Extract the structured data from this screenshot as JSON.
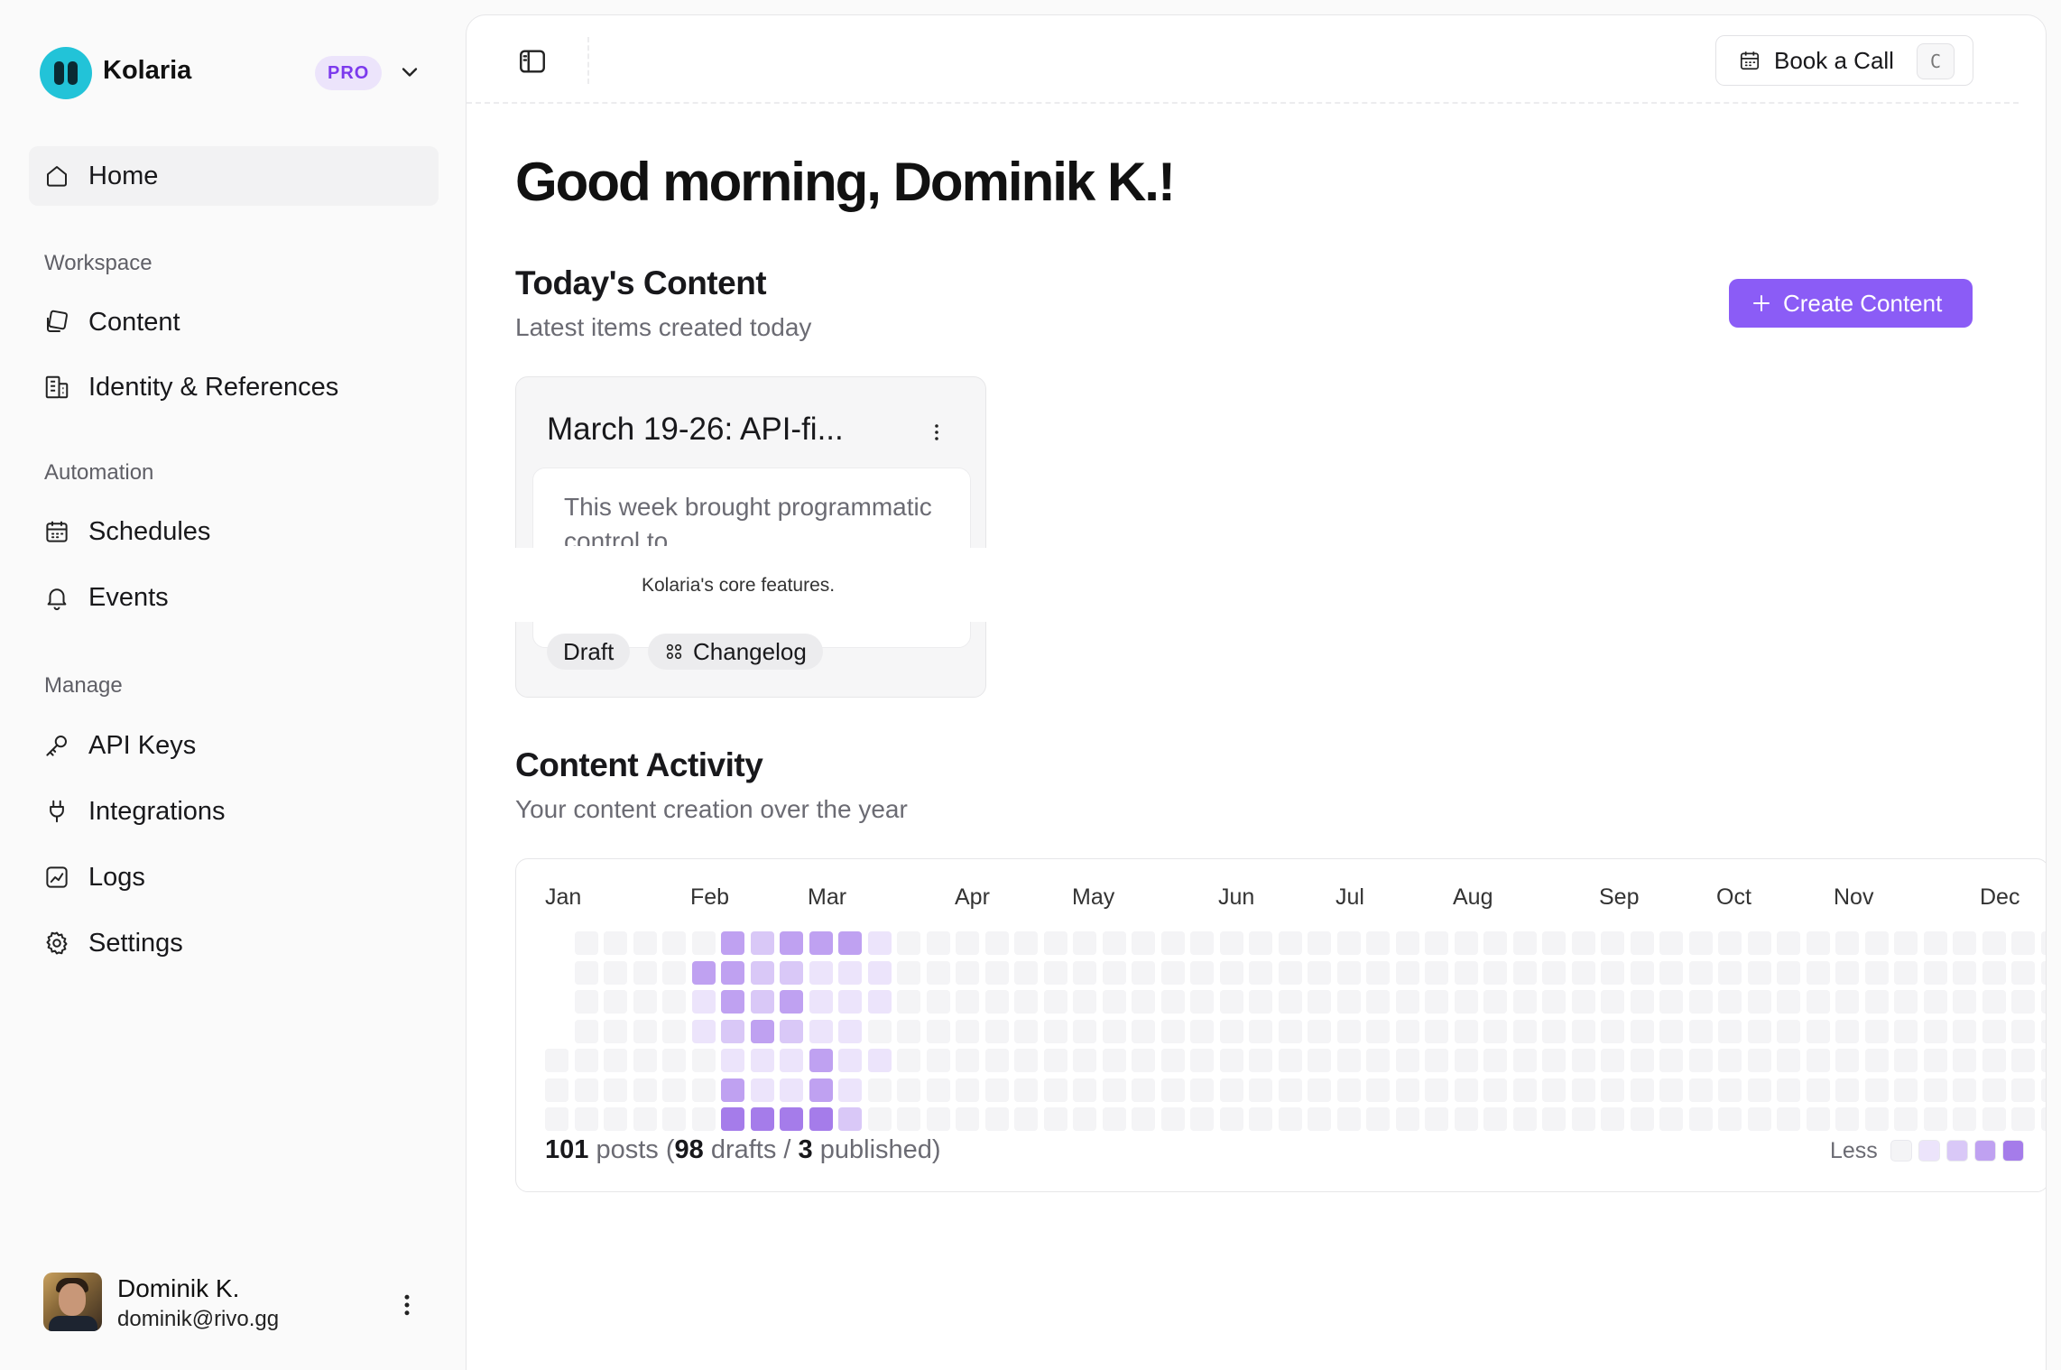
{
  "app": {
    "name": "Kolaria",
    "plan_badge": "PRO"
  },
  "sidebar": {
    "home": "Home",
    "sections": [
      {
        "title": "Workspace",
        "items": [
          {
            "label": "Content",
            "icon": "content-icon"
          },
          {
            "label": "Identity & References",
            "icon": "building-icon"
          }
        ]
      },
      {
        "title": "Automation",
        "items": [
          {
            "label": "Schedules",
            "icon": "calendar-icon"
          },
          {
            "label": "Events",
            "icon": "bell-icon"
          }
        ]
      },
      {
        "title": "Manage",
        "items": [
          {
            "label": "API Keys",
            "icon": "key-icon"
          },
          {
            "label": "Integrations",
            "icon": "plug-icon"
          },
          {
            "label": "Logs",
            "icon": "chart-icon"
          },
          {
            "label": "Settings",
            "icon": "gear-icon"
          }
        ]
      }
    ],
    "user": {
      "name": "Dominik K.",
      "email": "dominik@rivo.gg"
    }
  },
  "topbar": {
    "book_call_label": "Book a Call",
    "book_call_shortcut": "C"
  },
  "main": {
    "greeting": "Good morning, Dominik K.!",
    "todays_content": {
      "title": "Today's Content",
      "subtitle": "Latest items created today",
      "create_button": "Create Content",
      "cards": [
        {
          "title": "March 19-26: API-fi...",
          "preview": "This week brought programmatic control to",
          "preview_tail": "Kolaria's core features.",
          "status": "Draft",
          "category": "Changelog"
        }
      ]
    },
    "activity": {
      "title": "Content Activity",
      "subtitle": "Your content creation over the year",
      "months": [
        "Jan",
        "Feb",
        "Mar",
        "Apr",
        "May",
        "Jun",
        "Jul",
        "Aug",
        "Sep",
        "Oct",
        "Nov",
        "Dec"
      ],
      "summary": {
        "total": "101",
        "posts_word": "posts (",
        "drafts": "98",
        "drafts_word": "drafts /",
        "published": "3",
        "published_word": "published)"
      },
      "legend_less": "Less",
      "colors": [
        "#f4f4f6",
        "#ece4fb",
        "#d9c8f7",
        "#bfa1f1",
        "#a57cea"
      ],
      "levels": {
        "5": [
          0,
          3,
          1,
          1,
          0,
          0,
          0
        ],
        "6": [
          3,
          3,
          3,
          2,
          1,
          3,
          4
        ],
        "7": [
          2,
          2,
          2,
          3,
          1,
          1,
          4
        ],
        "8": [
          3,
          2,
          3,
          2,
          1,
          1,
          4
        ],
        "9": [
          3,
          1,
          1,
          1,
          3,
          3,
          4
        ],
        "10": [
          3,
          1,
          1,
          1,
          1,
          1,
          2
        ],
        "11": [
          1,
          1,
          1,
          0,
          1,
          0,
          0
        ]
      }
    }
  }
}
